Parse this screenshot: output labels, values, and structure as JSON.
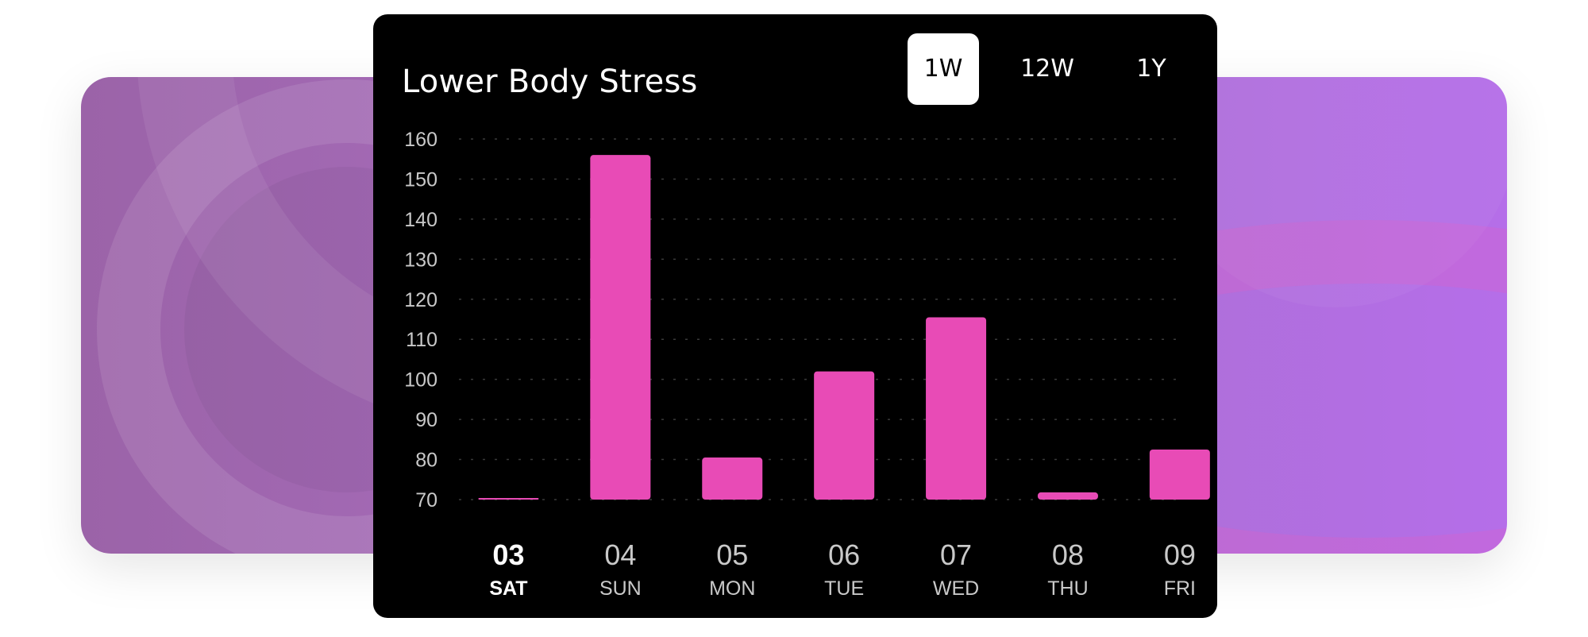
{
  "title": "Lower Body Stress",
  "tabs": [
    {
      "label": "1W",
      "active": true
    },
    {
      "label": "12W",
      "active": false
    },
    {
      "label": "1Y",
      "active": false
    }
  ],
  "colors": {
    "bar": "#e84bb6",
    "background": "#000000",
    "text": "#ffffff",
    "muted_text": "#c9c9c9",
    "grid": "#3a3a3a"
  },
  "chart_data": {
    "type": "bar",
    "title": "Lower Body Stress",
    "categories": [
      {
        "day": "03",
        "weekday": "SAT",
        "selected": true
      },
      {
        "day": "04",
        "weekday": "SUN",
        "selected": false
      },
      {
        "day": "05",
        "weekday": "MON",
        "selected": false
      },
      {
        "day": "06",
        "weekday": "TUE",
        "selected": false
      },
      {
        "day": "07",
        "weekday": "WED",
        "selected": false
      },
      {
        "day": "08",
        "weekday": "THU",
        "selected": false
      },
      {
        "day": "09",
        "weekday": "FRI",
        "selected": false
      }
    ],
    "values": [
      70.3,
      156,
      80.5,
      102,
      115.5,
      71.8,
      82.5
    ],
    "yticks": [
      70,
      80,
      90,
      100,
      110,
      120,
      130,
      140,
      150,
      160
    ],
    "ylim": [
      70,
      160
    ],
    "grid": true
  }
}
